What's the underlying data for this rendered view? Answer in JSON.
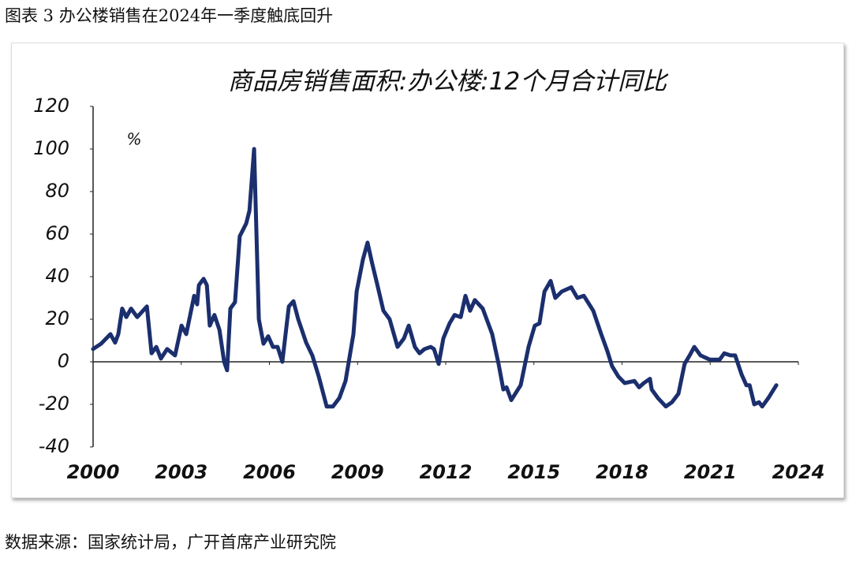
{
  "caption": "图表 3 办公楼销售在2024年一季度触底回升",
  "source": "数据来源：国家统计局，广开首席产业研究院",
  "chart_data": {
    "type": "line",
    "title": "商品房销售面积:办公楼:12个月合计同比",
    "y_unit": "%",
    "xlim": [
      2000,
      2024
    ],
    "xticks": [
      2000,
      2003,
      2006,
      2009,
      2012,
      2015,
      2018,
      2021,
      2024
    ],
    "ylim": [
      -40,
      120
    ],
    "yticks": [
      -40,
      -20,
      0,
      20,
      40,
      60,
      80,
      100,
      120
    ],
    "x": [
      2000.0,
      2000.27,
      2000.59,
      2000.75,
      2000.86,
      2000.99,
      2001.13,
      2001.29,
      2001.5,
      2001.83,
      2001.99,
      2002.15,
      2002.31,
      2002.52,
      2002.79,
      2003.01,
      2003.17,
      2003.44,
      2003.54,
      2003.6,
      2003.76,
      2003.87,
      2003.97,
      2004.13,
      2004.3,
      2004.46,
      2004.56,
      2004.67,
      2004.83,
      2004.99,
      2005.21,
      2005.32,
      2005.48,
      2005.64,
      2005.8,
      2005.96,
      2006.12,
      2006.28,
      2006.44,
      2006.66,
      2006.82,
      2006.98,
      2007.25,
      2007.46,
      2007.68,
      2007.95,
      2008.16,
      2008.38,
      2008.59,
      2008.86,
      2008.97,
      2009.18,
      2009.34,
      2009.5,
      2009.66,
      2009.88,
      2010.09,
      2010.36,
      2010.58,
      2010.74,
      2010.95,
      2011.11,
      2011.28,
      2011.49,
      2011.6,
      2011.76,
      2011.92,
      2012.13,
      2012.3,
      2012.51,
      2012.67,
      2012.83,
      2012.99,
      2013.26,
      2013.58,
      2013.8,
      2013.96,
      2014.07,
      2014.23,
      2014.55,
      2014.82,
      2015.03,
      2015.19,
      2015.36,
      2015.57,
      2015.73,
      2015.95,
      2016.27,
      2016.48,
      2016.7,
      2017.02,
      2017.29,
      2017.5,
      2017.66,
      2017.88,
      2018.09,
      2018.42,
      2018.58,
      2018.74,
      2018.95,
      2019.01,
      2019.22,
      2019.49,
      2019.7,
      2019.92,
      2020.13,
      2020.3,
      2020.46,
      2020.67,
      2020.99,
      2021.32,
      2021.48,
      2021.69,
      2021.85,
      2022.07,
      2022.23,
      2022.34,
      2022.5,
      2022.66,
      2022.77,
      2022.98,
      2023.25
    ],
    "series": [
      {
        "color": "#1b2f6e",
        "values": [
          6,
          8.5,
          13,
          9,
          13,
          25,
          21,
          25,
          21,
          26,
          4,
          7,
          1.5,
          6,
          3,
          17,
          13,
          31,
          27,
          36,
          39,
          36,
          17,
          22,
          15,
          0,
          -4,
          25,
          28,
          59,
          65,
          71,
          100,
          20,
          8.5,
          12,
          7,
          7,
          0,
          26,
          28.5,
          20,
          9,
          3,
          -7,
          -21,
          -21,
          -17,
          -9,
          13,
          33,
          48,
          56,
          46,
          37,
          24,
          20,
          7,
          11,
          17,
          7,
          4,
          6,
          7,
          6,
          -1,
          11,
          18,
          22,
          21,
          31,
          24,
          29,
          25,
          13,
          -1,
          -13,
          -12,
          -18,
          -11,
          7,
          17,
          18,
          33,
          38,
          30,
          33,
          35,
          30,
          31,
          24,
          13,
          5,
          -2,
          -7,
          -10,
          -9,
          -12,
          -10,
          -8,
          -13,
          -17,
          -21,
          -19,
          -15,
          -1,
          3,
          7,
          3,
          1,
          1,
          4,
          3,
          3,
          -6,
          -11,
          -11,
          -20,
          -19,
          -21,
          -17,
          -11
        ]
      }
    ]
  }
}
